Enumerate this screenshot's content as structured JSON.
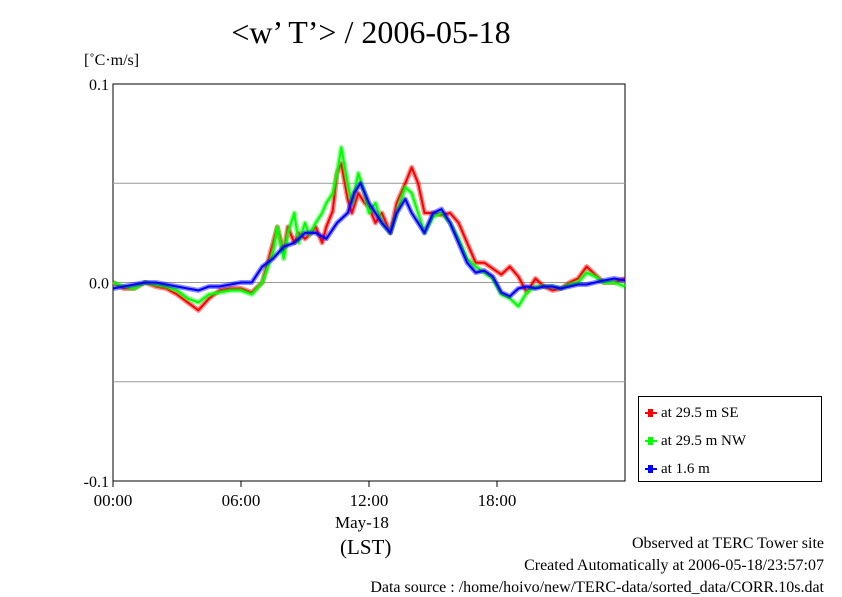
{
  "title": "<w’ T’> / 2006-05-18",
  "unit": "[˚C·m/s]",
  "chart_data": {
    "type": "line",
    "title": "<w’ T’> / 2006-05-18",
    "ylabel": "[˚C·m/s]",
    "xlabel": "May-18 (LST)",
    "ylim": [
      -0.1,
      0.1
    ],
    "xlim": [
      0,
      24
    ],
    "y_ticks": [
      "0.1",
      "0.0",
      "-0.1"
    ],
    "x_ticks": [
      "00:00",
      "06:00",
      "12:00",
      "18:00"
    ],
    "grid": "horizontal",
    "legend_position": "right",
    "series": [
      {
        "name": "at 29.5 m SE",
        "color": "#ff0000",
        "x": [
          0,
          0.5,
          1,
          1.5,
          2,
          2.5,
          3,
          3.5,
          4,
          4.5,
          5,
          5.5,
          6,
          6.5,
          7,
          7.5,
          7.7,
          8,
          8.2,
          8.5,
          8.7,
          9,
          9.2,
          9.5,
          9.8,
          10,
          10.3,
          10.5,
          10.7,
          11,
          11.2,
          11.5,
          11.8,
          12,
          12.3,
          12.6,
          13,
          13.3,
          13.7,
          14,
          14.3,
          14.6,
          15,
          15.4,
          15.8,
          16.2,
          16.6,
          17,
          17.4,
          17.8,
          18.2,
          18.6,
          19,
          19.4,
          19.8,
          20.2,
          20.6,
          21,
          21.4,
          21.8,
          22.2,
          22.6,
          23,
          23.5,
          24
        ],
        "y": [
          0,
          -0.003,
          -0.003,
          0,
          -0.002,
          -0.003,
          -0.006,
          -0.01,
          -0.014,
          -0.008,
          -0.004,
          -0.003,
          -0.003,
          -0.005,
          0,
          0.02,
          0.028,
          0.015,
          0.028,
          0.02,
          0.025,
          0.022,
          0.024,
          0.028,
          0.02,
          0.028,
          0.036,
          0.055,
          0.06,
          0.042,
          0.035,
          0.045,
          0.04,
          0.038,
          0.03,
          0.035,
          0.025,
          0.04,
          0.05,
          0.058,
          0.05,
          0.035,
          0.035,
          0.034,
          0.035,
          0.03,
          0.02,
          0.01,
          0.01,
          0.007,
          0.004,
          0.008,
          0.003,
          -0.005,
          0.002,
          -0.002,
          -0.004,
          -0.003,
          0,
          0.002,
          0.008,
          0.004,
          0,
          0,
          0.002
        ]
      },
      {
        "name": "at 29.5 m NW",
        "color": "#00ff00",
        "x": [
          0,
          0.5,
          1,
          1.5,
          2,
          2.5,
          3,
          3.5,
          4,
          4.5,
          5,
          5.5,
          6,
          6.5,
          7,
          7.5,
          7.7,
          8,
          8.2,
          8.5,
          8.7,
          9,
          9.2,
          9.5,
          9.8,
          10,
          10.3,
          10.5,
          10.7,
          11,
          11.2,
          11.5,
          11.8,
          12,
          12.3,
          12.6,
          13,
          13.3,
          13.7,
          14,
          14.3,
          14.6,
          15,
          15.4,
          15.8,
          16.2,
          16.6,
          17,
          17.4,
          17.8,
          18.2,
          18.6,
          19,
          19.4,
          19.8,
          20.2,
          20.6,
          21,
          21.4,
          21.8,
          22.2,
          22.6,
          23,
          23.5,
          24
        ],
        "y": [
          0,
          -0.002,
          -0.003,
          0,
          -0.001,
          -0.002,
          -0.004,
          -0.008,
          -0.01,
          -0.006,
          -0.005,
          -0.004,
          -0.004,
          -0.006,
          0,
          0.015,
          0.028,
          0.012,
          0.025,
          0.035,
          0.02,
          0.03,
          0.024,
          0.03,
          0.035,
          0.04,
          0.045,
          0.055,
          0.068,
          0.05,
          0.04,
          0.055,
          0.045,
          0.035,
          0.04,
          0.03,
          0.025,
          0.035,
          0.048,
          0.045,
          0.035,
          0.025,
          0.033,
          0.035,
          0.03,
          0.022,
          0.012,
          0.008,
          0.005,
          0.002,
          -0.006,
          -0.008,
          -0.012,
          -0.005,
          -0.002,
          -0.002,
          -0.002,
          -0.003,
          -0.001,
          0,
          0.005,
          0.003,
          0,
          0,
          -0.002
        ]
      },
      {
        "name": "at 1.6 m",
        "color": "#0000ff",
        "x": [
          0,
          0.5,
          1,
          1.5,
          2,
          2.5,
          3,
          3.5,
          4,
          4.5,
          5,
          5.5,
          6,
          6.5,
          7,
          7.5,
          8,
          8.5,
          9,
          9.5,
          10,
          10.5,
          11,
          11.3,
          11.6,
          12,
          12.3,
          12.6,
          13,
          13.3,
          13.7,
          14,
          14.3,
          14.6,
          15,
          15.4,
          15.8,
          16.2,
          16.6,
          17,
          17.4,
          17.8,
          18.2,
          18.6,
          19,
          19.4,
          19.8,
          20.2,
          20.6,
          21,
          21.4,
          21.8,
          22.2,
          22.6,
          23,
          23.5,
          24
        ],
        "y": [
          -0.003,
          -0.002,
          -0.001,
          0,
          0,
          -0.001,
          -0.002,
          -0.003,
          -0.004,
          -0.002,
          -0.002,
          -0.001,
          0,
          0,
          0.008,
          0.012,
          0.018,
          0.02,
          0.025,
          0.025,
          0.022,
          0.03,
          0.035,
          0.045,
          0.05,
          0.04,
          0.035,
          0.03,
          0.025,
          0.035,
          0.042,
          0.035,
          0.03,
          0.025,
          0.035,
          0.037,
          0.03,
          0.02,
          0.01,
          0.005,
          0.006,
          0.003,
          -0.005,
          -0.007,
          -0.003,
          -0.002,
          -0.003,
          -0.002,
          -0.002,
          -0.003,
          -0.002,
          -0.001,
          -0.001,
          0,
          0.001,
          0.002,
          0.001
        ]
      }
    ]
  },
  "x_sub_label": "May-18",
  "x_axis_label": "(LST)",
  "footer": {
    "line1": "Observed at TERC Tower site",
    "line2": "Created Automatically at 2006-05-18/23:57:07",
    "line3": "Data source : /home/hoivo/new/TERC-data/sorted_data/CORR.10s.dat"
  }
}
